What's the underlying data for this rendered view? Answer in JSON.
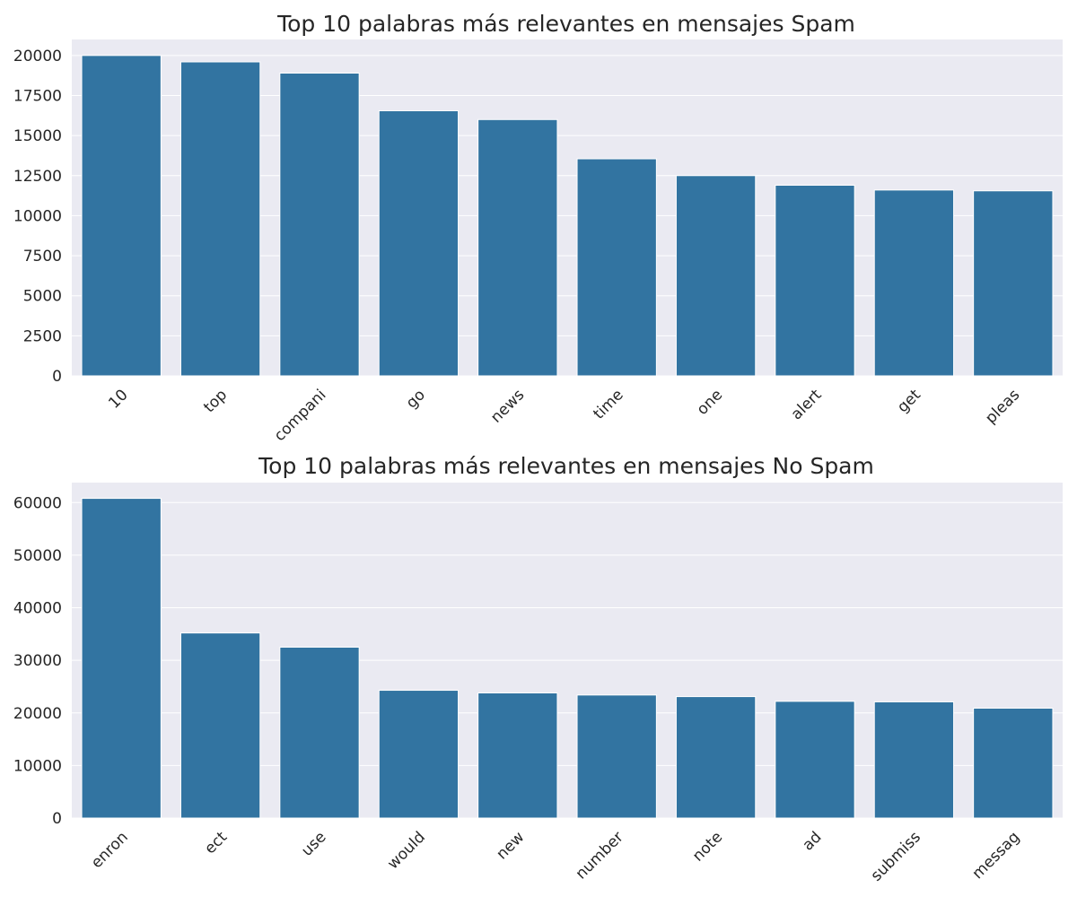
{
  "chart_data": [
    {
      "type": "bar",
      "title": "Top 10 palabras más relevantes en mensajes Spam",
      "xlabel": "",
      "ylabel": "",
      "categories": [
        "10",
        "top",
        "compani",
        "go",
        "news",
        "time",
        "one",
        "alert",
        "get",
        "pleas"
      ],
      "values": [
        20000,
        19600,
        18900,
        16550,
        16000,
        13550,
        12500,
        11900,
        11600,
        11550
      ],
      "ylim": [
        0,
        21000
      ],
      "yticks": [
        0,
        2500,
        5000,
        7500,
        10000,
        12500,
        15000,
        17500,
        20000
      ],
      "grid": true,
      "color": "#3274a1",
      "background": "#eaeaf2"
    },
    {
      "type": "bar",
      "title": "Top 10 palabras más relevantes en mensajes No Spam",
      "xlabel": "",
      "ylabel": "",
      "categories": [
        "enron",
        "ect",
        "use",
        "would",
        "new",
        "number",
        "note",
        "ad",
        "submiss",
        "messag"
      ],
      "values": [
        60800,
        35200,
        32500,
        24300,
        23800,
        23400,
        23100,
        22200,
        22100,
        20900
      ],
      "ylim": [
        0,
        63800
      ],
      "yticks": [
        0,
        10000,
        20000,
        30000,
        40000,
        50000,
        60000
      ],
      "grid": true,
      "color": "#3274a1",
      "background": "#eaeaf2"
    }
  ]
}
